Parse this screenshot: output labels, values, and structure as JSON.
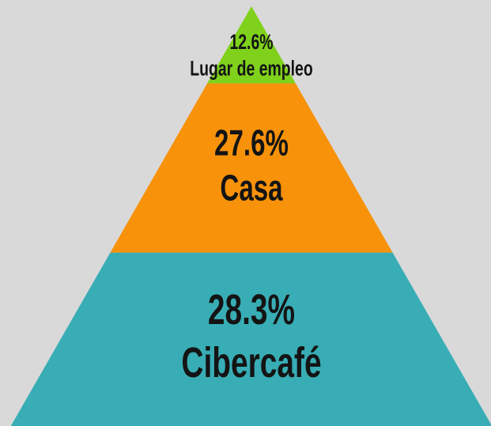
{
  "chart_data": {
    "type": "pyramid",
    "categories": [
      "Lugar de empleo",
      "Casa",
      "Cibercafé"
    ],
    "values": [
      12.6,
      27.6,
      28.3
    ],
    "value_labels": [
      "12.6%",
      "27.6%",
      "28.3%"
    ],
    "colors": [
      "#7fd11b",
      "#f7920a",
      "#38adb5"
    ]
  }
}
